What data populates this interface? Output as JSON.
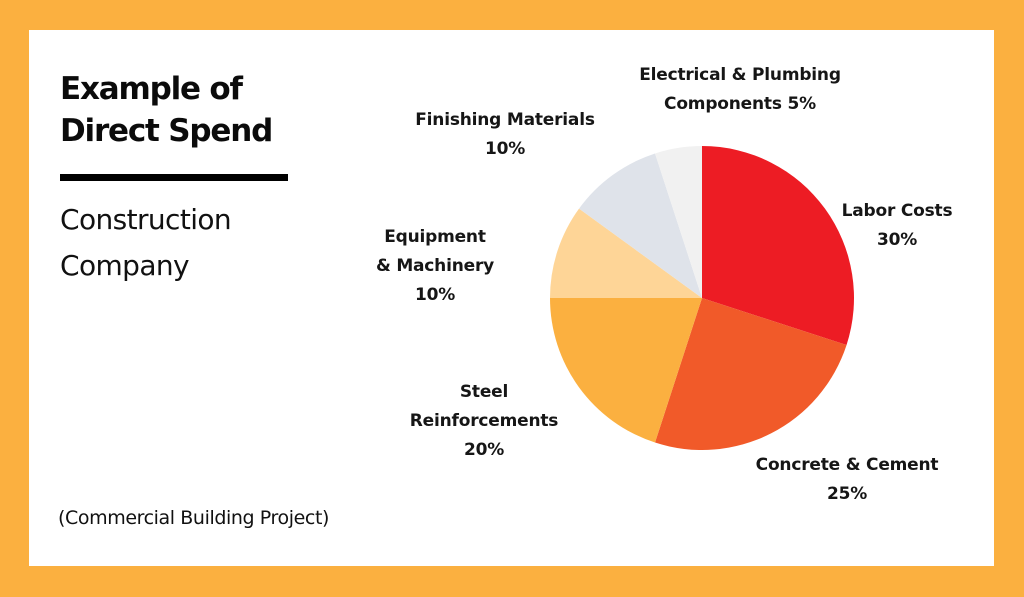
{
  "header": {
    "title_line1": "Example of",
    "title_line2": "Direct Spend",
    "subtitle_line1": "Construction",
    "subtitle_line2": "Company"
  },
  "footnote": "(Commercial Building Project)",
  "colors": {
    "frame": "#fbb040",
    "card": "#ffffff",
    "text": "#161616"
  },
  "labels": {
    "labor": {
      "line1": "Labor Costs",
      "line2": "30%"
    },
    "concrete": {
      "line1": "Concrete & Cement",
      "line2": "25%"
    },
    "steel": {
      "line1": "Steel",
      "line2": "Reinforcements",
      "line3": "20%"
    },
    "equipment": {
      "line1": "Equipment",
      "line2": "& Machinery",
      "line3": "10%"
    },
    "finishing": {
      "line1": "Finishing Materials",
      "line2": "10%"
    },
    "electrical": {
      "line1": "Electrical & Plumbing",
      "line2": "Components 5%"
    }
  },
  "chart_data": {
    "type": "pie",
    "title": "Example of Direct Spend — Construction Company",
    "subtitle": "(Commercial Building Project)",
    "start_angle": "12 o'clock, clockwise",
    "categories": [
      "Labor Costs",
      "Concrete & Cement",
      "Steel Reinforcements",
      "Equipment & Machinery",
      "Finishing Materials",
      "Electrical & Plumbing Components"
    ],
    "values": [
      30,
      25,
      20,
      10,
      10,
      5
    ],
    "unit": "%",
    "colors": [
      "#ed1c24",
      "#f15a29",
      "#fbb040",
      "#fed597",
      "#dfe3ea",
      "#f1f1f1"
    ],
    "legend": "none (direct labels)"
  }
}
